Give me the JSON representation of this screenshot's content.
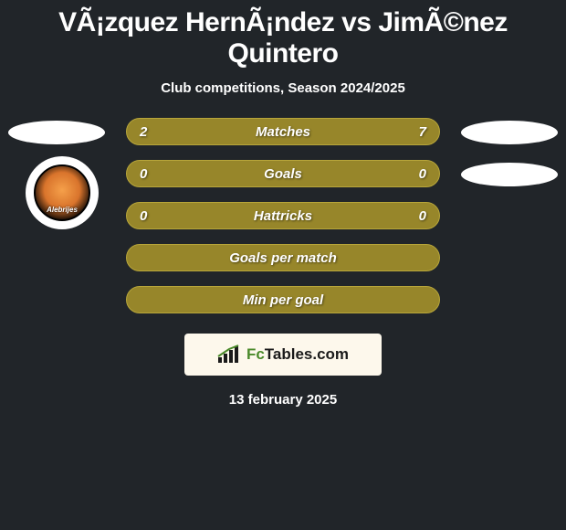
{
  "title": "VÃ¡zquez HernÃ¡ndez vs JimÃ©nez Quintero",
  "subtitle": "Club competitions, Season 2024/2025",
  "date": "13 february 2025",
  "bar_style": {
    "background": "#97862a",
    "border": "#b8a63a",
    "text": "#ffffff"
  },
  "rows": [
    {
      "label": "Matches",
      "left": "2",
      "right": "7",
      "left_ellipse": true,
      "right_ellipse": true,
      "left_badge": false
    },
    {
      "label": "Goals",
      "left": "0",
      "right": "0",
      "left_ellipse": false,
      "right_ellipse": true,
      "left_badge": true
    },
    {
      "label": "Hattricks",
      "left": "0",
      "right": "0",
      "left_ellipse": false,
      "right_ellipse": false,
      "left_badge": false
    },
    {
      "label": "Goals per match",
      "left": "",
      "right": "",
      "left_ellipse": false,
      "right_ellipse": false,
      "left_badge": false
    },
    {
      "label": "Min per goal",
      "left": "",
      "right": "",
      "left_ellipse": false,
      "right_ellipse": false,
      "left_badge": false
    }
  ],
  "badge": {
    "text": "Alebrijes"
  },
  "logo": {
    "prefix": "Fc",
    "suffix": "Tables.com"
  }
}
